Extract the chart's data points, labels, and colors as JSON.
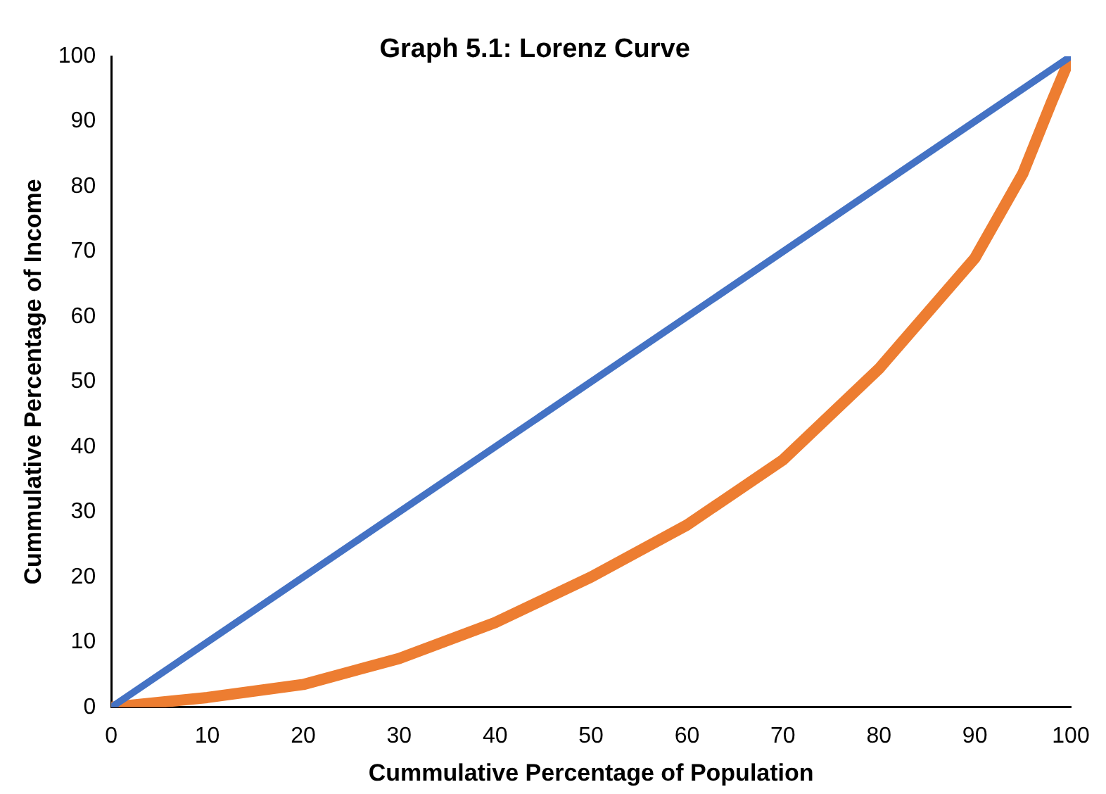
{
  "chart_data": {
    "type": "line",
    "title": "Graph 5.1: Lorenz Curve",
    "xlabel": "Cummulative Percentage of Population",
    "ylabel": "Cummulative Percentage of Income",
    "xlim": [
      0,
      100
    ],
    "xticks": [
      0,
      10,
      20,
      30,
      40,
      50,
      60,
      70,
      80,
      90,
      100
    ],
    "ylim": [
      0,
      100
    ],
    "yticks": [
      0,
      10,
      20,
      30,
      40,
      50,
      60,
      70,
      80,
      90,
      100
    ],
    "grid": false,
    "legend": false,
    "series": [
      {
        "color": "#4472c4",
        "x": [
          0,
          100
        ],
        "values": [
          0,
          100
        ]
      },
      {
        "color": "#ed7d31",
        "x": [
          0,
          10,
          20,
          30,
          40,
          50,
          60,
          70,
          80,
          90,
          95,
          98,
          100
        ],
        "values": [
          0,
          1.5,
          3.5,
          7.5,
          13,
          20,
          28,
          38,
          52,
          69,
          82,
          93,
          100
        ]
      }
    ]
  }
}
